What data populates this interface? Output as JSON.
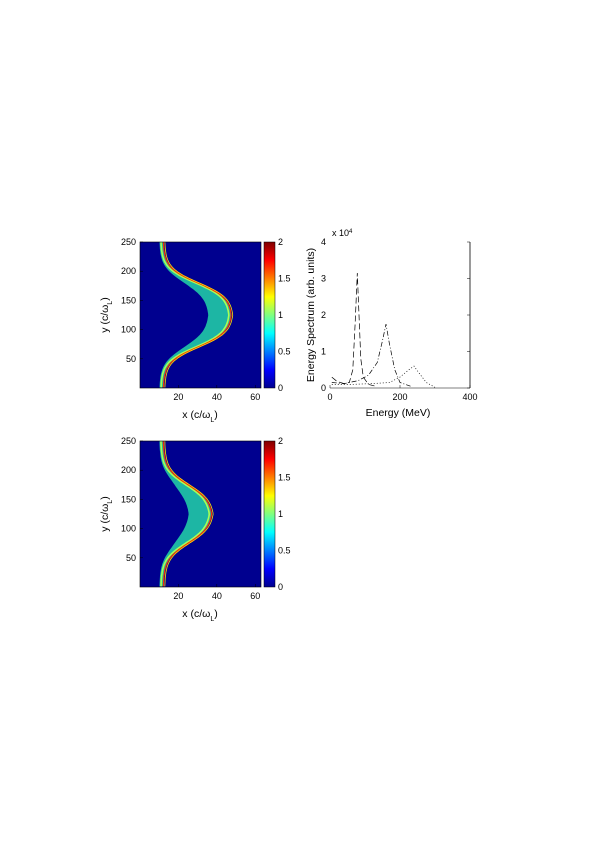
{
  "chart_data": [
    {
      "type": "heatmap",
      "panel": "top-left",
      "xlabel": "x (c/ωL)",
      "ylabel": "y (c/ωL)",
      "xlim": [
        0,
        63
      ],
      "ylim": [
        0,
        250
      ],
      "xticks": [
        20,
        40,
        60
      ],
      "yticks": [
        50,
        100,
        150,
        200,
        250
      ],
      "colorbar": {
        "min": 0,
        "max": 2,
        "ticks": [
          "0",
          "0.5",
          "1",
          "1.5",
          "2"
        ]
      },
      "colormap": [
        "#00008f",
        "#0000ff",
        "#00ffff",
        "#ffff00",
        "#ff0000",
        "#800000"
      ],
      "background": "#00008f",
      "profile": {
        "x_edge": 12,
        "x_peak": 48,
        "y_center": 125,
        "half_width": 55,
        "steepness": 13
      }
    },
    {
      "type": "heatmap",
      "panel": "bottom-left",
      "xlabel": "x (c/ωL)",
      "ylabel": "y (c/ωL)",
      "xlim": [
        0,
        63
      ],
      "ylim": [
        0,
        250
      ],
      "xticks": [
        20,
        40,
        60
      ],
      "yticks": [
        50,
        100,
        150,
        200,
        250
      ],
      "colorbar": {
        "min": 0,
        "max": 2,
        "ticks": [
          "0",
          "0.5",
          "1",
          "1.5",
          "2"
        ]
      },
      "colormap": [
        "#00008f",
        "#0000ff",
        "#00ffff",
        "#ffff00",
        "#ff0000",
        "#800000"
      ],
      "background": "#00008f",
      "profile": {
        "x_edge": 12,
        "x_peak": 38,
        "y_center": 125,
        "half_width": 50,
        "steepness": 14
      }
    },
    {
      "type": "line",
      "panel": "top-right",
      "xlabel": "Energy (MeV)",
      "ylabel": "Energy Spectrum (arb. units)",
      "exponent_label": "x 10",
      "exponent_power": "4",
      "xlim": [
        0,
        400
      ],
      "ylim": [
        0,
        4
      ],
      "xticks": [
        0,
        200,
        400
      ],
      "yticks": [
        0,
        1,
        2,
        3,
        4
      ],
      "grid": false,
      "series": [
        {
          "dash": "dashed",
          "x": [
            5,
            20,
            40,
            55,
            65,
            72,
            78,
            82,
            88,
            95,
            110,
            130
          ],
          "y": [
            0.3,
            0.18,
            0.12,
            0.15,
            0.5,
            1.8,
            3.15,
            2.2,
            0.8,
            0.3,
            0.1,
            0.05
          ]
        },
        {
          "dash": "dashdot",
          "x": [
            5,
            40,
            80,
            110,
            135,
            150,
            160,
            170,
            185,
            200,
            230
          ],
          "y": [
            0.15,
            0.12,
            0.2,
            0.35,
            0.7,
            1.3,
            1.75,
            1.2,
            0.5,
            0.15,
            0.05
          ]
        },
        {
          "dash": "dotted",
          "x": [
            5,
            60,
            120,
            170,
            200,
            225,
            240,
            255,
            275,
            300
          ],
          "y": [
            0.1,
            0.1,
            0.12,
            0.15,
            0.3,
            0.5,
            0.6,
            0.4,
            0.15,
            0.02
          ]
        },
        {
          "dash": "solid",
          "x": [
            400,
            400
          ],
          "y": [
            0,
            4
          ]
        }
      ]
    }
  ]
}
